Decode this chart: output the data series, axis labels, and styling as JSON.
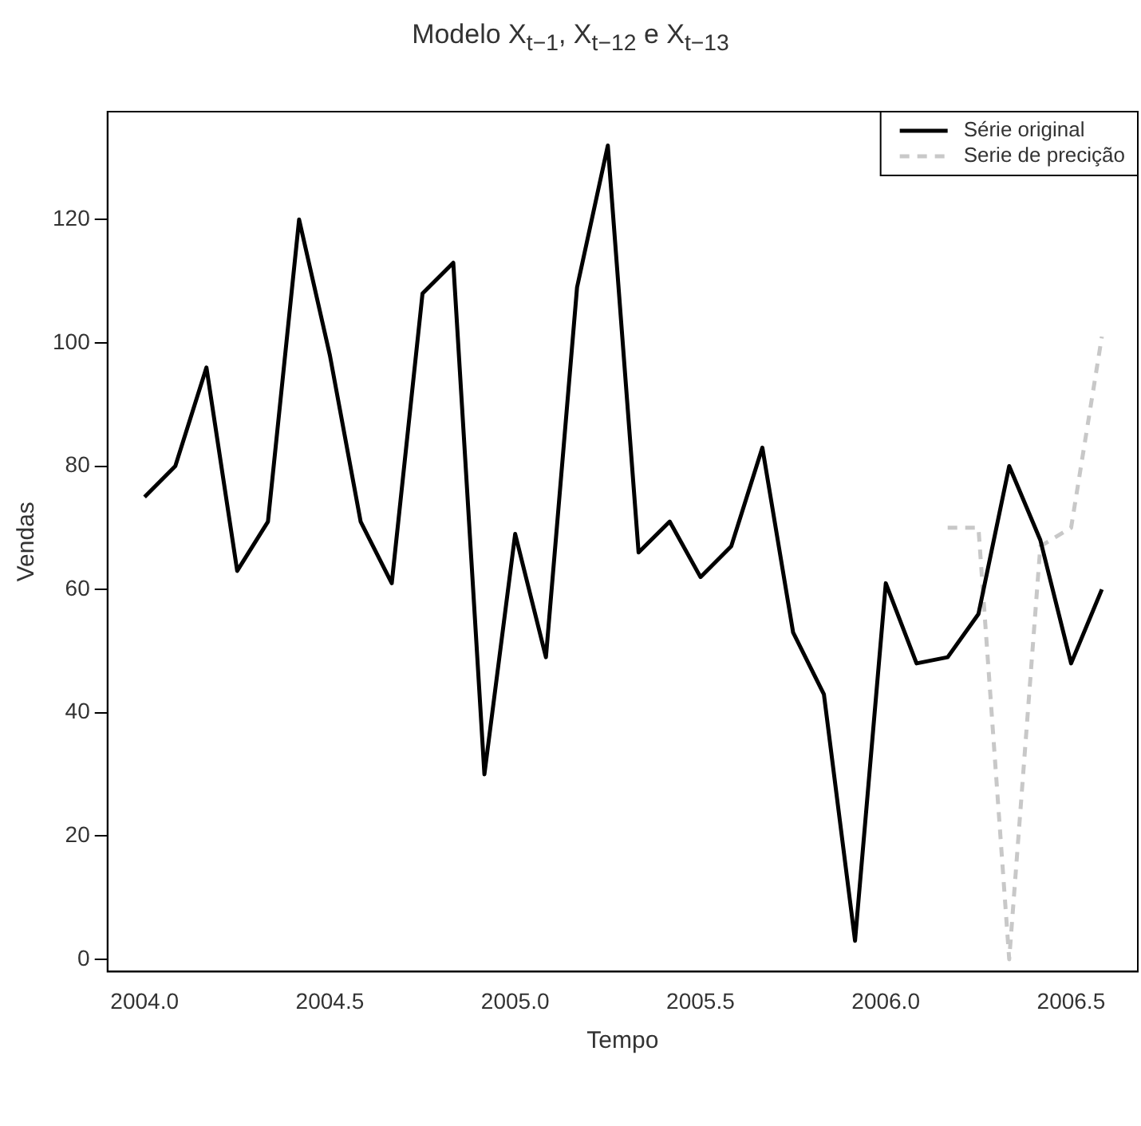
{
  "chart_data": {
    "type": "line",
    "title": "Modelo X$_{t−1}$, X$_{t−12}$ e X$_{t−13}$",
    "xlabel": "Tempo",
    "ylabel": "Vendas",
    "x": [
      2004.0,
      2004.083,
      2004.167,
      2004.25,
      2004.333,
      2004.417,
      2004.5,
      2004.583,
      2004.667,
      2004.75,
      2004.833,
      2004.917,
      2005.0,
      2005.083,
      2005.167,
      2005.25,
      2005.333,
      2005.417,
      2005.5,
      2005.583,
      2005.667,
      2005.75,
      2005.833,
      2005.917,
      2006.0,
      2006.083,
      2006.167,
      2006.25,
      2006.333,
      2006.417,
      2006.5,
      2006.583
    ],
    "series": [
      {
        "name": "Série original",
        "color": "#000000",
        "line_style": "solid",
        "values": [
          75,
          80,
          96,
          63,
          71,
          120,
          98,
          71,
          61,
          108,
          113,
          30,
          69,
          49,
          109,
          132,
          66,
          71,
          62,
          67,
          83,
          53,
          43,
          3,
          61,
          48,
          49,
          56,
          80,
          68,
          48,
          60
        ]
      },
      {
        "name": "Serie de precição",
        "color": "#c8c8c8",
        "line_style": "dashed",
        "x": [
          2006.167,
          2006.25,
          2006.333,
          2006.417,
          2006.5,
          2006.583
        ],
        "values": [
          70,
          70,
          0,
          67,
          70,
          101
        ]
      }
    ],
    "xlim": [
      2003.9,
      2006.68
    ],
    "xticks": [
      {
        "value": 2004,
        "label": "2004.0"
      },
      2004.5,
      {
        "value": 2005,
        "label": "2005.0"
      },
      2005.5,
      {
        "value": 2006,
        "label": "2006.0"
      },
      2006.5
    ],
    "ylim": [
      -2,
      137.5
    ],
    "yticks": [
      0,
      20,
      40,
      60,
      80,
      100,
      120
    ],
    "grid": false,
    "legend": "top right",
    "marker": "none"
  }
}
